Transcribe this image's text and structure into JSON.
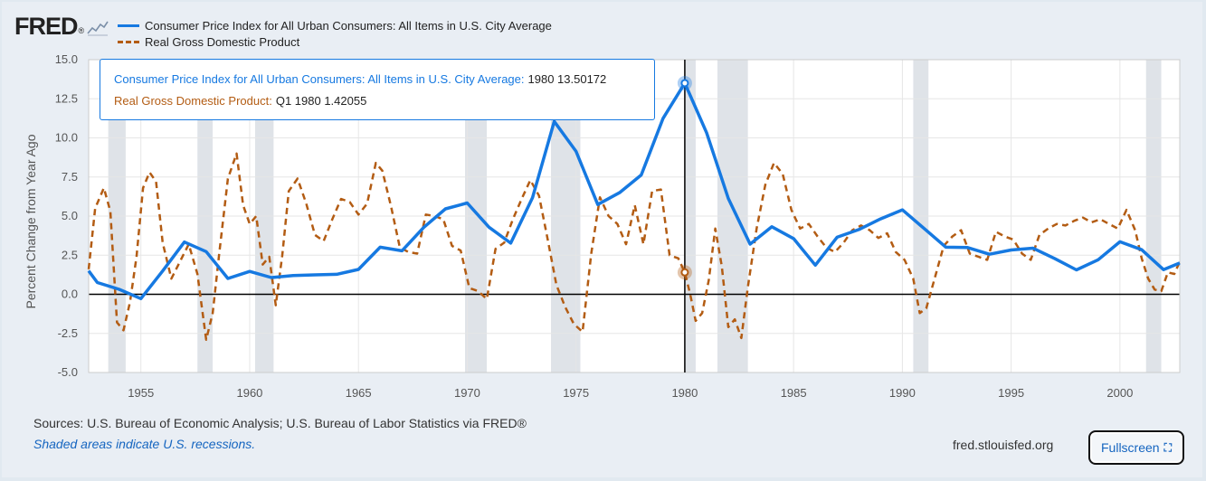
{
  "header": {
    "logo_text": "FRED",
    "logo_mark": "®",
    "logo_icon": "line-chart-icon"
  },
  "tooltip": {
    "cpi_label": "Consumer Price Index for All Urban Consumers: All Items in U.S. City Average:",
    "cpi_value": "1980 13.50172",
    "gdp_label": "Real Gross Domestic Product:",
    "gdp_value": "Q1 1980 1.42055"
  },
  "footer": {
    "sources": "Sources: U.S. Bureau of Economic Analysis; U.S. Bureau of Labor Statistics via FRED®",
    "shaded_note": "Shaded areas indicate U.S. recessions.",
    "site": "fred.stlouisfed.org",
    "fullscreen_label": "Fullscreen",
    "fullscreen_icon": "expand-icon"
  },
  "colors": {
    "cpi": "#1679e1",
    "gdp": "#b35c13",
    "recession": "#dfe3e8",
    "grid": "#e6e6e6",
    "axis_text": "#555555"
  },
  "chart_data": {
    "type": "line",
    "ylabel": "Percent Change from Year Ago",
    "xlim": [
      1952.6,
      2002.75
    ],
    "ylim": [
      -5,
      15
    ],
    "x_ticks": [
      1955,
      1960,
      1965,
      1970,
      1975,
      1980,
      1985,
      1990,
      1995,
      2000
    ],
    "x_tick_labels": [
      "1955",
      "1960",
      "1965",
      "1970",
      "1975",
      "1980",
      "1985",
      "1990",
      "1995",
      "2000"
    ],
    "y_ticks": [
      -5,
      -2.5,
      0,
      2.5,
      5,
      7.5,
      10,
      12.5,
      15
    ],
    "y_tick_labels": [
      "-5.0",
      "-2.5",
      "0.0",
      "2.5",
      "5.0",
      "7.5",
      "10.0",
      "12.5",
      "15.0"
    ],
    "grid": true,
    "legend_position": "top-left",
    "recessions": [
      [
        1953.5,
        1954.3
      ],
      [
        1957.6,
        1958.3
      ],
      [
        1960.25,
        1961.1
      ],
      [
        1969.9,
        1970.9
      ],
      [
        1973.85,
        1975.2
      ],
      [
        1980.0,
        1980.5
      ],
      [
        1981.5,
        1982.9
      ],
      [
        1990.5,
        1991.2
      ],
      [
        2001.2,
        2001.9
      ]
    ],
    "highlight": {
      "x": 1980,
      "series": [
        "cpi",
        "gdp"
      ]
    },
    "series": [
      {
        "name": "Consumer Price Index for All Urban Consumers: All Items in U.S. City Average",
        "style": "solid",
        "x": [
          1952.6,
          1953,
          1954,
          1955,
          1956,
          1957,
          1958,
          1959,
          1960,
          1961,
          1962,
          1963,
          1964,
          1965,
          1966,
          1967,
          1968,
          1969,
          1970,
          1971,
          1972,
          1973,
          1974,
          1975,
          1976,
          1977,
          1978,
          1979,
          1980,
          1981,
          1982,
          1983,
          1984,
          1985,
          1986,
          1987,
          1988,
          1989,
          1990,
          1991,
          1992,
          1993,
          1994,
          1995,
          1996,
          1997,
          1998,
          1999,
          2000,
          2001,
          2002,
          2002.75
        ],
        "y": [
          1.5,
          0.75,
          0.32,
          -0.28,
          1.49,
          3.34,
          2.73,
          1.01,
          1.46,
          1.07,
          1.2,
          1.24,
          1.28,
          1.59,
          3.01,
          2.78,
          4.27,
          5.46,
          5.84,
          4.29,
          3.27,
          6.18,
          11.05,
          9.14,
          5.74,
          6.5,
          7.63,
          11.25,
          13.5,
          10.33,
          6.13,
          3.21,
          4.32,
          3.56,
          1.86,
          3.65,
          4.14,
          4.82,
          5.4,
          4.21,
          3.01,
          2.99,
          2.56,
          2.83,
          2.95,
          2.29,
          1.56,
          2.21,
          3.36,
          2.85,
          1.58,
          2.0
        ]
      },
      {
        "name": "Real Gross Domestic Product",
        "style": "dashed",
        "x": [
          1952.6,
          1952.9,
          1953.3,
          1953.6,
          1953.9,
          1954.2,
          1954.5,
          1954.8,
          1955.1,
          1955.4,
          1955.7,
          1956.0,
          1956.4,
          1956.8,
          1957.2,
          1957.6,
          1958.0,
          1958.3,
          1958.6,
          1959.0,
          1959.4,
          1959.7,
          1960.0,
          1960.3,
          1960.6,
          1960.9,
          1961.2,
          1961.5,
          1961.8,
          1962.2,
          1962.6,
          1963.0,
          1963.4,
          1963.8,
          1964.2,
          1964.6,
          1965.0,
          1965.4,
          1965.8,
          1966.1,
          1966.5,
          1966.9,
          1967.3,
          1967.7,
          1968.1,
          1968.5,
          1968.9,
          1969.3,
          1969.7,
          1970.1,
          1970.5,
          1970.9,
          1971.3,
          1971.7,
          1972.1,
          1972.5,
          1972.9,
          1973.3,
          1973.7,
          1974.1,
          1974.5,
          1974.9,
          1975.3,
          1975.7,
          1976.1,
          1976.5,
          1976.9,
          1977.3,
          1977.7,
          1978.1,
          1978.5,
          1978.9,
          1979.3,
          1979.7,
          1980.0,
          1980.25,
          1980.5,
          1980.8,
          1981.1,
          1981.4,
          1981.7,
          1982.0,
          1982.3,
          1982.6,
          1982.9,
          1983.3,
          1983.7,
          1984.1,
          1984.5,
          1984.9,
          1985.3,
          1985.7,
          1986.1,
          1986.5,
          1986.9,
          1987.3,
          1987.7,
          1988.1,
          1988.5,
          1988.9,
          1989.3,
          1989.7,
          1990.1,
          1990.5,
          1990.8,
          1991.1,
          1991.5,
          1991.9,
          1992.3,
          1992.7,
          1993.1,
          1993.5,
          1993.9,
          1994.3,
          1994.7,
          1995.1,
          1995.5,
          1995.9,
          1996.3,
          1996.7,
          1997.1,
          1997.5,
          1997.9,
          1998.3,
          1998.7,
          1999.1,
          1999.5,
          1999.9,
          2000.3,
          2000.7,
          2001.0,
          2001.3,
          2001.6,
          2001.9,
          2002.2,
          2002.5,
          2002.75
        ],
        "y": [
          1.6,
          5.5,
          6.8,
          5.3,
          -1.8,
          -2.3,
          -0.5,
          2.4,
          6.8,
          7.8,
          7.2,
          3.3,
          1.0,
          2.1,
          3.2,
          1.3,
          -2.9,
          -1.2,
          2.6,
          7.4,
          9.0,
          5.7,
          4.5,
          5.0,
          1.9,
          2.4,
          -0.7,
          2.5,
          6.6,
          7.4,
          5.8,
          3.8,
          3.4,
          4.8,
          6.1,
          5.9,
          5.1,
          5.8,
          8.4,
          7.9,
          5.6,
          3.0,
          2.7,
          2.6,
          5.1,
          5.0,
          4.8,
          3.1,
          2.8,
          0.4,
          0.2,
          -0.3,
          2.9,
          3.3,
          4.8,
          6.1,
          7.3,
          6.3,
          3.5,
          0.6,
          -0.8,
          -1.9,
          -2.4,
          2.6,
          6.2,
          5.0,
          4.5,
          3.2,
          5.7,
          3.2,
          6.6,
          6.7,
          2.5,
          2.3,
          1.4,
          0.0,
          -1.7,
          -1.2,
          0.9,
          4.2,
          1.8,
          -2.1,
          -1.6,
          -2.8,
          0.5,
          4.2,
          7.0,
          8.4,
          7.7,
          5.4,
          4.2,
          4.5,
          3.7,
          3.0,
          2.7,
          3.3,
          4.1,
          4.4,
          4.1,
          3.6,
          3.9,
          2.7,
          2.2,
          1.0,
          -1.2,
          -0.9,
          1.1,
          3.1,
          3.7,
          4.1,
          2.6,
          2.4,
          2.2,
          4.0,
          3.7,
          3.5,
          2.6,
          2.2,
          3.8,
          4.2,
          4.5,
          4.4,
          4.7,
          4.9,
          4.6,
          4.8,
          4.5,
          4.2,
          5.4,
          4.1,
          2.3,
          1.0,
          0.3,
          0.2,
          1.4,
          1.3,
          2.1
        ]
      }
    ]
  }
}
